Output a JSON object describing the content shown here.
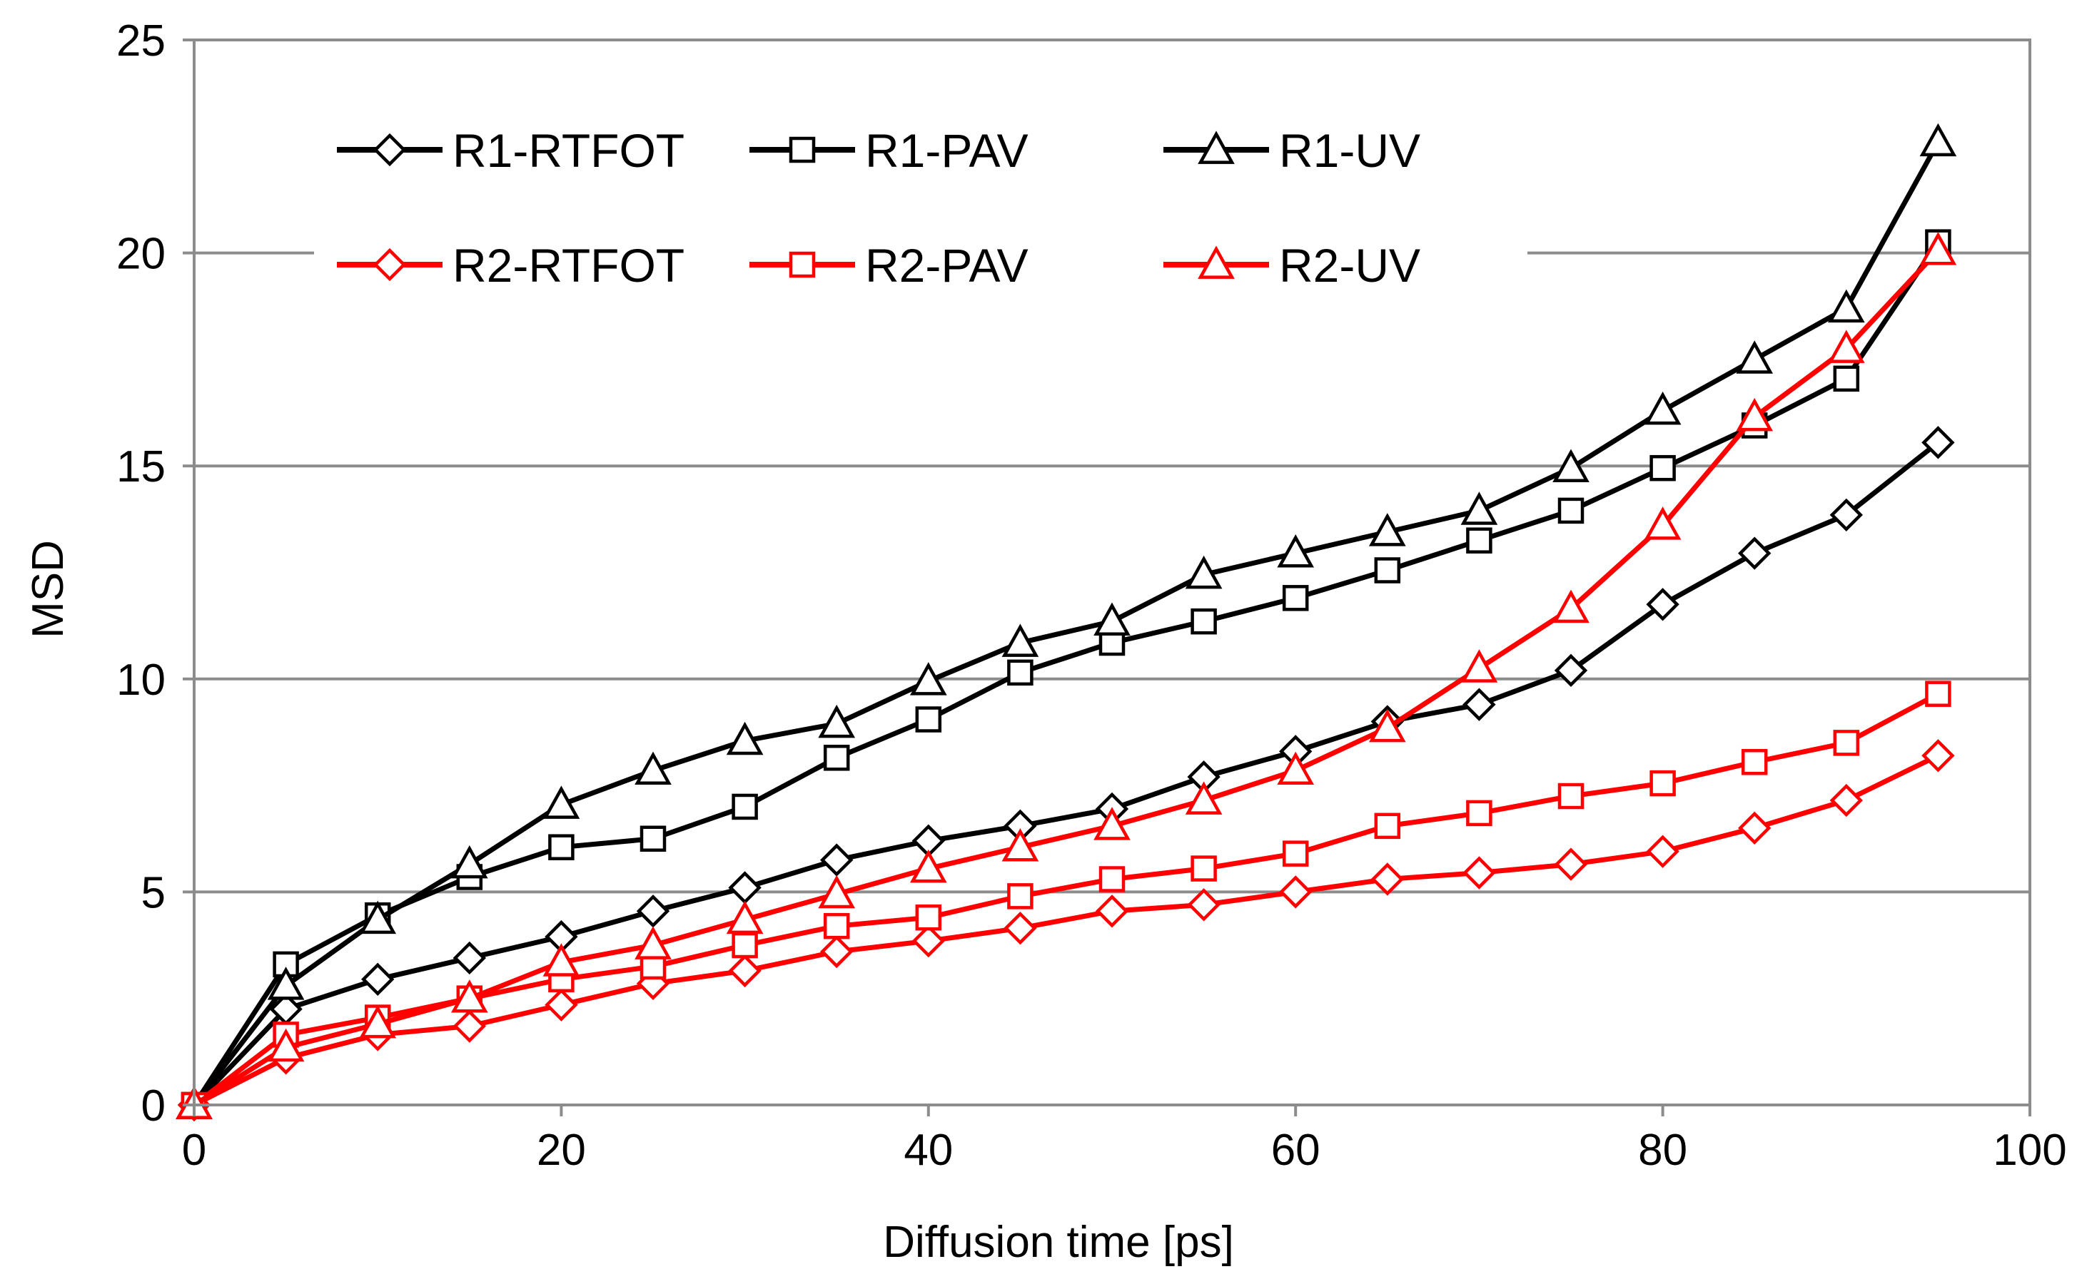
{
  "chart_data": {
    "type": "line",
    "title": "",
    "xlabel": "Diffusion time [ps]",
    "ylabel": "MSD",
    "xlim": [
      0,
      100
    ],
    "ylim": [
      0,
      25
    ],
    "xticks": [
      0,
      20,
      40,
      60,
      80,
      100
    ],
    "yticks": [
      0,
      5,
      10,
      15,
      20,
      25
    ],
    "grid": "horizontal",
    "legend_position": "top-left, inside plot, 3 columns",
    "x": [
      0,
      5,
      10,
      15,
      20,
      25,
      30,
      35,
      40,
      45,
      50,
      55,
      60,
      65,
      70,
      75,
      80,
      85,
      90,
      95
    ],
    "series": [
      {
        "name": "R1-RTFOT",
        "color": "#000000",
        "marker": "diamond",
        "values": [
          0,
          2.25,
          2.95,
          3.45,
          3.95,
          4.55,
          5.1,
          5.75,
          6.2,
          6.55,
          6.95,
          7.7,
          8.3,
          9.0,
          9.4,
          10.2,
          11.75,
          12.95,
          13.85,
          15.55
        ]
      },
      {
        "name": "R1-PAV",
        "color": "#000000",
        "marker": "square",
        "values": [
          0,
          3.3,
          4.45,
          5.35,
          6.05,
          6.25,
          7.0,
          8.15,
          9.05,
          10.15,
          10.85,
          11.35,
          11.9,
          12.55,
          13.25,
          13.95,
          14.95,
          15.95,
          17.05,
          20.25
        ]
      },
      {
        "name": "R1-UV",
        "color": "#000000",
        "marker": "triangle",
        "values": [
          0,
          2.8,
          4.35,
          5.65,
          7.05,
          7.85,
          8.55,
          8.95,
          9.95,
          10.85,
          11.35,
          12.45,
          12.95,
          13.45,
          13.95,
          14.95,
          16.3,
          17.5,
          18.7,
          22.6
        ]
      },
      {
        "name": "R2-RTFOT",
        "color": "#ff0000",
        "marker": "diamond",
        "values": [
          0,
          1.1,
          1.65,
          1.85,
          2.35,
          2.85,
          3.15,
          3.6,
          3.85,
          4.15,
          4.55,
          4.7,
          5.0,
          5.3,
          5.45,
          5.65,
          5.95,
          6.5,
          7.15,
          8.2
        ]
      },
      {
        "name": "R2-PAV",
        "color": "#ff0000",
        "marker": "square",
        "values": [
          0,
          1.65,
          2.05,
          2.5,
          2.95,
          3.25,
          3.75,
          4.2,
          4.4,
          4.9,
          5.3,
          5.55,
          5.9,
          6.55,
          6.85,
          7.25,
          7.55,
          8.05,
          8.5,
          9.65
        ]
      },
      {
        "name": "R2-UV",
        "color": "#ff0000",
        "marker": "triangle",
        "values": [
          0,
          1.35,
          1.9,
          2.5,
          3.35,
          3.75,
          4.35,
          4.95,
          5.55,
          6.05,
          6.55,
          7.15,
          7.85,
          8.85,
          10.25,
          11.65,
          13.6,
          16.15,
          17.75,
          20.05
        ]
      }
    ]
  }
}
